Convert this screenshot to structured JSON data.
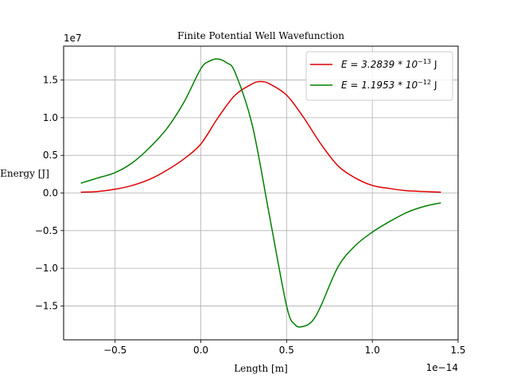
{
  "chart_data": {
    "type": "line",
    "title": "Finite Potential Well Wavefunction",
    "xlabel": "Length [m]",
    "ylabel": "Energy [J]",
    "x_offset_text": "1e−14",
    "y_offset_text": "1e7",
    "xlim": [
      -0.8,
      1.5
    ],
    "ylim": [
      -1.95,
      1.95
    ],
    "xticks": [
      -0.5,
      0.0,
      0.5,
      1.0,
      1.5
    ],
    "xtick_labels": [
      "−0.5",
      "0.0",
      "0.5",
      "1.0",
      "1.5"
    ],
    "yticks": [
      -1.5,
      -1.0,
      -0.5,
      0.0,
      0.5,
      1.0,
      1.5
    ],
    "ytick_labels": [
      "−1.5",
      "−1.0",
      "−0.5",
      "0.0",
      "0.5",
      "1.0",
      "1.5"
    ],
    "grid": true,
    "legend_position": "top-right",
    "series": [
      {
        "name": "E = 3.2839 * 10^-13 J",
        "legend_main": "E = 3.2839 * 10",
        "legend_exp": "−13",
        "legend_unit": "J",
        "color": "#e00000",
        "x": [
          -0.7,
          -0.6,
          -0.5,
          -0.4,
          -0.3,
          -0.2,
          -0.1,
          0.0,
          0.1,
          0.2,
          0.3,
          0.35,
          0.4,
          0.5,
          0.6,
          0.7,
          0.8,
          0.9,
          1.0,
          1.1,
          1.2,
          1.3,
          1.4
        ],
        "y": [
          0.01,
          0.02,
          0.05,
          0.1,
          0.18,
          0.3,
          0.45,
          0.65,
          1.0,
          1.3,
          1.45,
          1.48,
          1.45,
          1.3,
          1.0,
          0.65,
          0.36,
          0.2,
          0.1,
          0.06,
          0.03,
          0.02,
          0.01
        ]
      },
      {
        "name": "E = 1.1953 * 10^-12 J",
        "legend_main": "E = 1.1953 * 10",
        "legend_exp": "−12",
        "legend_unit": "J",
        "color": "#008000",
        "x": [
          -0.7,
          -0.6,
          -0.5,
          -0.4,
          -0.3,
          -0.2,
          -0.1,
          0.0,
          0.05,
          0.1,
          0.15,
          0.2,
          0.3,
          0.4,
          0.5,
          0.55,
          0.6,
          0.65,
          0.7,
          0.8,
          0.9,
          1.0,
          1.1,
          1.2,
          1.3,
          1.4
        ],
        "y": [
          0.13,
          0.2,
          0.27,
          0.4,
          0.6,
          0.85,
          1.2,
          1.65,
          1.75,
          1.78,
          1.73,
          1.6,
          0.9,
          -0.3,
          -1.5,
          -1.75,
          -1.77,
          -1.7,
          -1.5,
          -0.98,
          -0.7,
          -0.52,
          -0.38,
          -0.26,
          -0.18,
          -0.13
        ]
      }
    ]
  }
}
